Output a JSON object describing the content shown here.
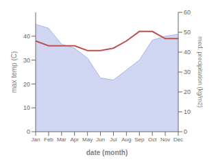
{
  "chart_data": {
    "type": "line",
    "x_label": "date (month)",
    "y_label": "max temp (C)",
    "y2_label": "med. precipitation (kg/m2)",
    "categories": [
      "Jan",
      "Feb",
      "Mar",
      "Apr",
      "May",
      "Jun",
      "Jul",
      "Aug",
      "Sep",
      "Oct",
      "Nov",
      "Dec"
    ],
    "series": [
      {
        "type": "area",
        "axis": "y2",
        "color": "#aab4e8",
        "values": [
          54,
          52,
          44,
          42,
          37,
          27,
          26,
          31,
          36,
          46,
          48,
          49
        ]
      },
      {
        "type": "line",
        "color": "#c05050",
        "values": [
          38,
          36,
          36,
          36,
          34,
          34,
          35,
          38,
          42,
          42,
          39,
          39
        ]
      }
    ],
    "ylim": [
      0,
      50
    ],
    "yticks": [
      0,
      10,
      20,
      30,
      40
    ],
    "y2lim": [
      0,
      60
    ],
    "y2ticks": [
      0,
      10,
      20,
      30,
      40,
      50,
      60
    ],
    "grid": false
  }
}
